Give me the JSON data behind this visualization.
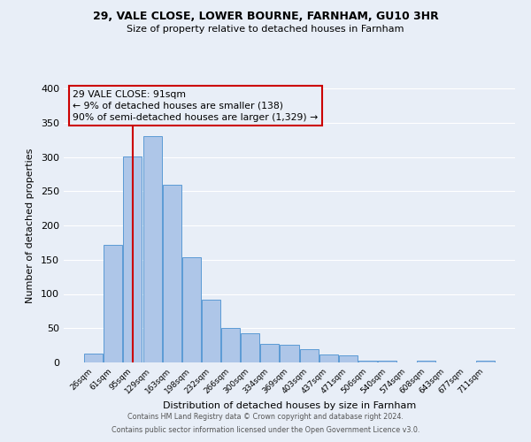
{
  "title1": "29, VALE CLOSE, LOWER BOURNE, FARNHAM, GU10 3HR",
  "title2": "Size of property relative to detached houses in Farnham",
  "xlabel": "Distribution of detached houses by size in Farnham",
  "ylabel": "Number of detached properties",
  "categories": [
    "26sqm",
    "61sqm",
    "95sqm",
    "129sqm",
    "163sqm",
    "198sqm",
    "232sqm",
    "266sqm",
    "300sqm",
    "334sqm",
    "369sqm",
    "403sqm",
    "437sqm",
    "471sqm",
    "506sqm",
    "540sqm",
    "574sqm",
    "608sqm",
    "643sqm",
    "677sqm",
    "711sqm"
  ],
  "values": [
    13,
    172,
    301,
    330,
    259,
    153,
    91,
    50,
    43,
    27,
    26,
    20,
    11,
    10,
    3,
    3,
    0,
    3,
    0,
    0,
    3
  ],
  "bar_color": "#aec6e8",
  "bar_edge_color": "#5b9bd5",
  "bar_edge_width": 0.7,
  "vline_x_index": 2,
  "vline_color": "#cc0000",
  "annotation_line1": "29 VALE CLOSE: 91sqm",
  "annotation_line2": "← 9% of detached houses are smaller (138)",
  "annotation_line3": "90% of semi-detached houses are larger (1,329) →",
  "box_edge_color": "#cc0000",
  "ylim": [
    0,
    400
  ],
  "yticks": [
    0,
    50,
    100,
    150,
    200,
    250,
    300,
    350,
    400
  ],
  "background_color": "#e8eef7",
  "grid_color": "#ffffff",
  "footer1": "Contains HM Land Registry data © Crown copyright and database right 2024.",
  "footer2": "Contains public sector information licensed under the Open Government Licence v3.0."
}
